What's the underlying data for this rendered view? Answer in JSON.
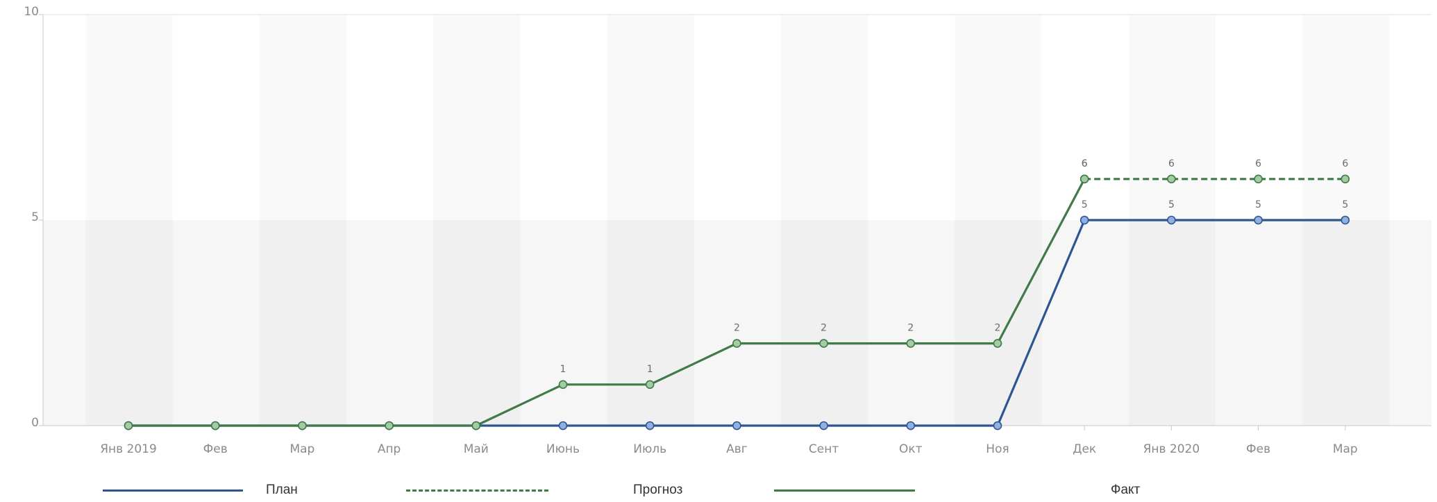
{
  "chart_data": {
    "type": "line",
    "categories": [
      "Янв 2019",
      "Фев",
      "Мар",
      "Апр",
      "Май",
      "Июнь",
      "Июль",
      "Авг",
      "Сент",
      "Окт",
      "Ноя",
      "Дек",
      "Янв 2020",
      "Фев",
      "Мар"
    ],
    "y_ticks": [
      "0",
      "5",
      "10"
    ],
    "ylim": [
      0,
      10
    ],
    "grid": "alternating vertical bands",
    "legend_position": "bottom",
    "series": [
      {
        "name": "План",
        "values": [
          0,
          0,
          0,
          0,
          0,
          0,
          0,
          0,
          0,
          0,
          0,
          5,
          5,
          5,
          5
        ],
        "color": "#2d5593",
        "marker_fill": "#8fb0e0",
        "dash": false,
        "labels_from_index": 11
      },
      {
        "name": "Прогноз",
        "values": [
          null,
          null,
          null,
          null,
          null,
          null,
          null,
          null,
          null,
          null,
          null,
          6,
          6,
          6,
          6
        ],
        "color": "#3f7a48",
        "marker_fill": "#a3cca5",
        "dash": true,
        "labels_from_index": 11
      },
      {
        "name": "Факт",
        "values": [
          0,
          0,
          0,
          0,
          0,
          1,
          1,
          2,
          2,
          2,
          2,
          6,
          null,
          null,
          null
        ],
        "color": "#3f7a48",
        "marker_fill": "#a3cca5",
        "dash": false,
        "labels_from_index": 5
      }
    ]
  },
  "legend": [
    {
      "label": "План",
      "color": "#2d5593",
      "dash": false
    },
    {
      "label": "Прогноз",
      "color": "#3f7a48",
      "dash": true
    },
    {
      "label": "Факт",
      "color": "#3f7a48",
      "dash": false
    }
  ]
}
